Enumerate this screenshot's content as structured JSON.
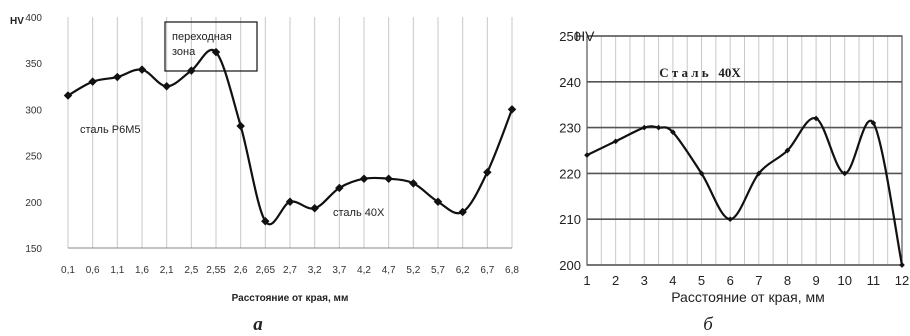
{
  "chart_data": [
    {
      "type": "line",
      "ylabel": "HV",
      "xlabel": "Расстояние от края, мм",
      "panel_label": "а",
      "categories": [
        "0,1",
        "0,6",
        "1,1",
        "1,6",
        "2,1",
        "2,5",
        "2,55",
        "2,6",
        "2,65",
        "2,7",
        "3,2",
        "3,7",
        "4,2",
        "4,7",
        "5,2",
        "5,7",
        "6,2",
        "6,7",
        "6,8"
      ],
      "series": [
        {
          "values": [
            315,
            330,
            335,
            343,
            325,
            342,
            362,
            282,
            179,
            200,
            193,
            215,
            225,
            225,
            220,
            200,
            189,
            232,
            300
          ]
        }
      ],
      "ylim": [
        150,
        400
      ],
      "yticks": [
        "150",
        "200",
        "250",
        "300",
        "350",
        "400"
      ],
      "grid": "vertical",
      "annotations": [
        {
          "text_lines": [
            "переходная",
            "зона"
          ],
          "boxed": true
        },
        {
          "text": "сталь Р6М5"
        },
        {
          "text": "сталь 40Х"
        }
      ],
      "colors": {
        "line": "#111111",
        "grid": "#c8c8c8",
        "axis": "#888888"
      }
    },
    {
      "type": "line",
      "ylabel": "HV",
      "xlabel": "Расстояние от края, мм",
      "panel_label": "б",
      "title": "С т а л ь   40Х",
      "x": [
        1,
        2,
        3,
        3.5,
        4,
        5,
        6,
        7,
        8,
        9,
        10,
        11,
        12
      ],
      "series": [
        {
          "values": [
            224,
            227,
            230,
            230,
            229,
            220,
            210,
            220,
            225,
            232,
            220,
            231,
            200
          ]
        }
      ],
      "ylim": [
        200,
        250
      ],
      "yticks": [
        "200",
        "210",
        "220",
        "230",
        "240",
        "250"
      ],
      "xticks": [
        "1",
        "2",
        "3",
        "4",
        "5",
        "6",
        "7",
        "8",
        "9",
        "10",
        "11",
        "12"
      ],
      "grid": "both",
      "colors": {
        "line": "#111111",
        "grid": "#c8c8c8",
        "axis": "#555555"
      }
    }
  ]
}
